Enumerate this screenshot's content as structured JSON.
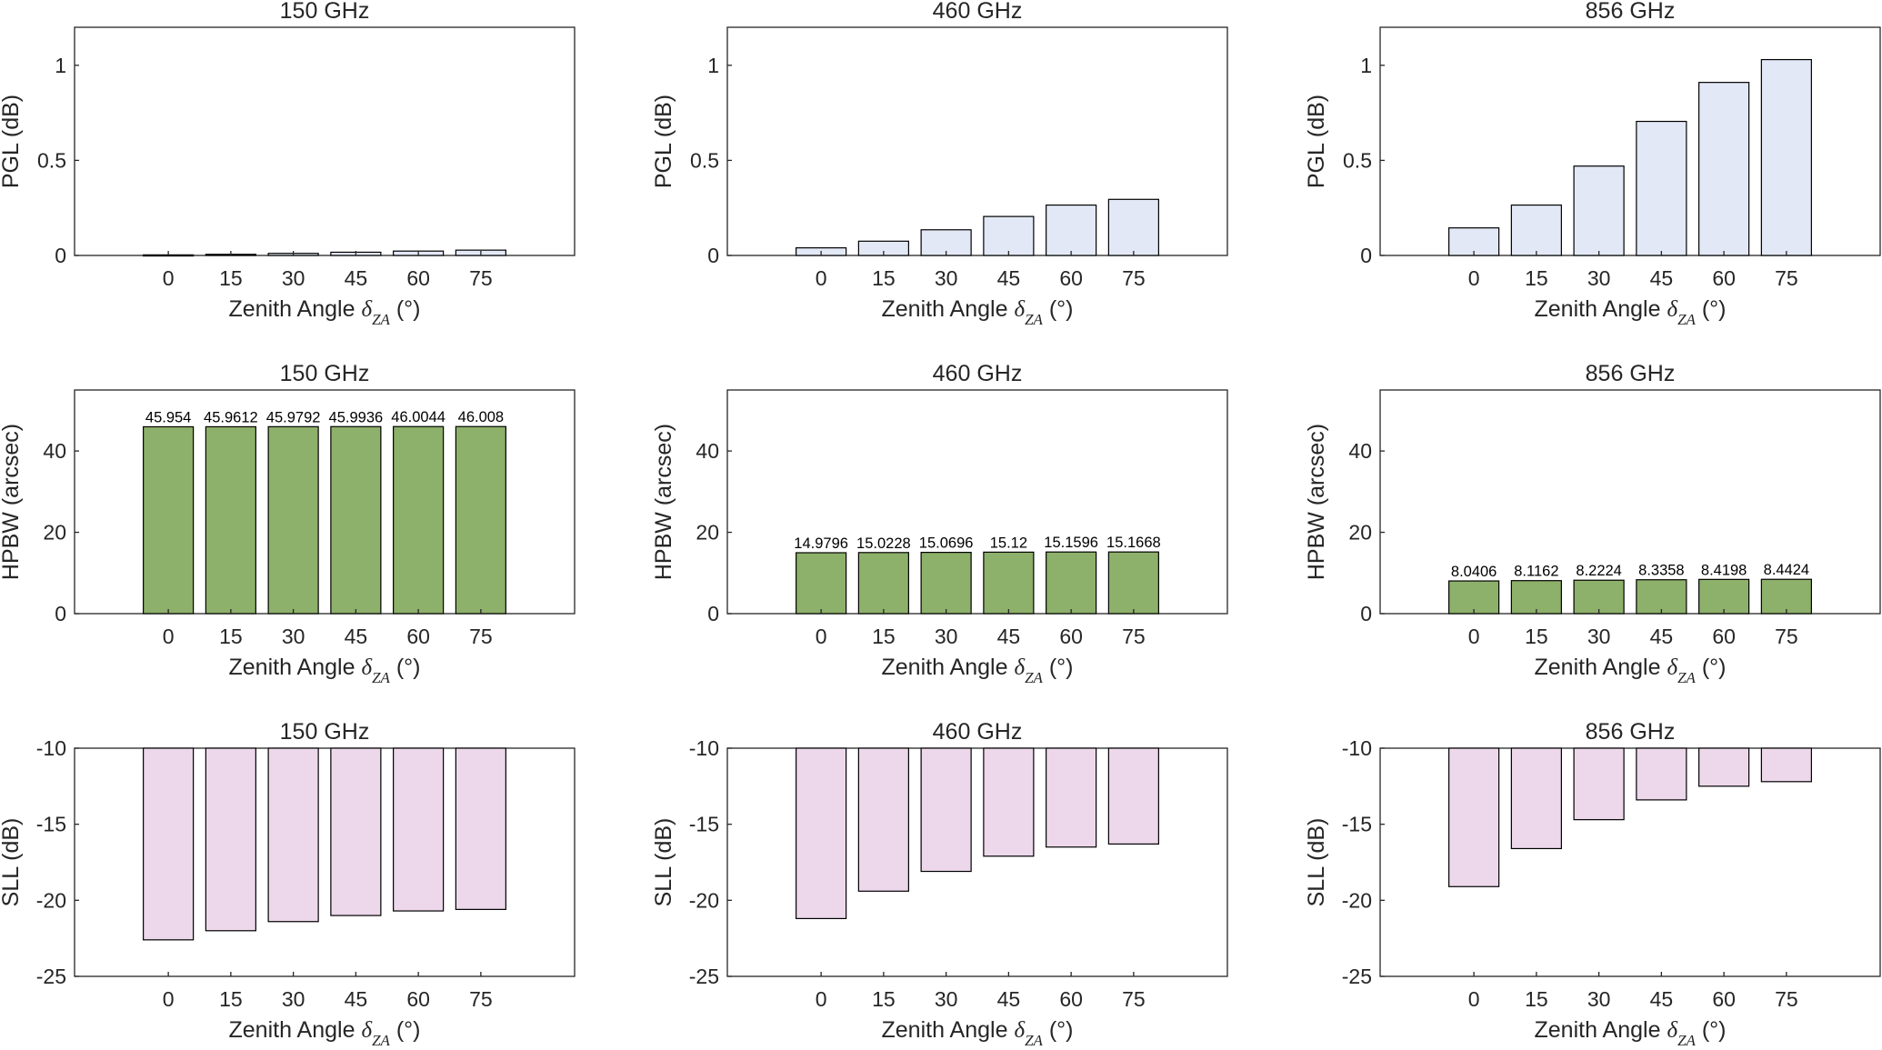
{
  "chart_data": [
    {
      "id": "pgl-150",
      "type": "bar",
      "title": "150 GHz",
      "xlabel": "Zenith Angle",
      "xlabel_symbol": "δ",
      "xlabel_sub": "ZA",
      "xlabel_unit": "(°)",
      "ylabel": "PGL (dB)",
      "categories": [
        "0",
        "15",
        "30",
        "45",
        "60",
        "75"
      ],
      "values": [
        0.003,
        0.006,
        0.011,
        0.017,
        0.023,
        0.028
      ],
      "ylim": [
        0,
        1.2
      ],
      "yticks": [
        0,
        0.5,
        1
      ],
      "ytick_labels": [
        "0",
        "0.5",
        "1"
      ],
      "color": "#e3e8f6",
      "show_labels": false
    },
    {
      "id": "pgl-460",
      "type": "bar",
      "title": "460 GHz",
      "xlabel": "Zenith Angle",
      "xlabel_symbol": "δ",
      "xlabel_sub": "ZA",
      "xlabel_unit": "(°)",
      "ylabel": "PGL (dB)",
      "categories": [
        "0",
        "15",
        "30",
        "45",
        "60",
        "75"
      ],
      "values": [
        0.04,
        0.075,
        0.135,
        0.205,
        0.265,
        0.295
      ],
      "ylim": [
        0,
        1.2
      ],
      "yticks": [
        0,
        0.5,
        1
      ],
      "ytick_labels": [
        "0",
        "0.5",
        "1"
      ],
      "color": "#e3e8f6",
      "show_labels": false
    },
    {
      "id": "pgl-856",
      "type": "bar",
      "title": "856 GHz",
      "xlabel": "Zenith Angle",
      "xlabel_symbol": "δ",
      "xlabel_sub": "ZA",
      "xlabel_unit": "(°)",
      "ylabel": "PGL (dB)",
      "categories": [
        "0",
        "15",
        "30",
        "45",
        "60",
        "75"
      ],
      "values": [
        0.145,
        0.265,
        0.47,
        0.705,
        0.91,
        1.03
      ],
      "ylim": [
        0,
        1.2
      ],
      "yticks": [
        0,
        0.5,
        1
      ],
      "ytick_labels": [
        "0",
        "0.5",
        "1"
      ],
      "color": "#e3e8f6",
      "show_labels": false
    },
    {
      "id": "hpbw-150",
      "type": "bar",
      "title": "150 GHz",
      "xlabel": "Zenith Angle",
      "xlabel_symbol": "δ",
      "xlabel_sub": "ZA",
      "xlabel_unit": "(°)",
      "ylabel": "HPBW (arcsec)",
      "categories": [
        "0",
        "15",
        "30",
        "45",
        "60",
        "75"
      ],
      "values": [
        45.954,
        45.9612,
        45.9792,
        45.9936,
        46.0044,
        46.008
      ],
      "data_labels": [
        "45.954",
        "45.9612",
        "45.9792",
        "45.9936",
        "46.0044",
        "46.008"
      ],
      "ylim": [
        0,
        55
      ],
      "yticks": [
        0,
        20,
        40
      ],
      "ytick_labels": [
        "0",
        "20",
        "40"
      ],
      "color": "#8db06a",
      "show_labels": true
    },
    {
      "id": "hpbw-460",
      "type": "bar",
      "title": "460 GHz",
      "xlabel": "Zenith Angle",
      "xlabel_symbol": "δ",
      "xlabel_sub": "ZA",
      "xlabel_unit": "(°)",
      "ylabel": "HPBW (arcsec)",
      "categories": [
        "0",
        "15",
        "30",
        "45",
        "60",
        "75"
      ],
      "values": [
        14.9796,
        15.0228,
        15.0696,
        15.12,
        15.1596,
        15.1668
      ],
      "data_labels": [
        "14.9796",
        "15.0228",
        "15.0696",
        "15.12",
        "15.1596",
        "15.1668"
      ],
      "ylim": [
        0,
        55
      ],
      "yticks": [
        0,
        20,
        40
      ],
      "ytick_labels": [
        "0",
        "20",
        "40"
      ],
      "color": "#8db06a",
      "show_labels": true
    },
    {
      "id": "hpbw-856",
      "type": "bar",
      "title": "856 GHz",
      "xlabel": "Zenith Angle",
      "xlabel_symbol": "δ",
      "xlabel_sub": "ZA",
      "xlabel_unit": "(°)",
      "ylabel": "HPBW (arcsec)",
      "categories": [
        "0",
        "15",
        "30",
        "45",
        "60",
        "75"
      ],
      "values": [
        8.0406,
        8.1162,
        8.2224,
        8.3358,
        8.4198,
        8.4424
      ],
      "data_labels": [
        "8.0406",
        "8.1162",
        "8.2224",
        "8.3358",
        "8.4198",
        "8.4424"
      ],
      "ylim": [
        0,
        55
      ],
      "yticks": [
        0,
        20,
        40
      ],
      "ytick_labels": [
        "0",
        "20",
        "40"
      ],
      "color": "#8db06a",
      "show_labels": true
    },
    {
      "id": "sll-150",
      "type": "bar",
      "title": "150 GHz",
      "xlabel": "Zenith Angle",
      "xlabel_symbol": "δ",
      "xlabel_sub": "ZA",
      "xlabel_unit": "(°)",
      "ylabel": "SLL (dB)",
      "categories": [
        "0",
        "15",
        "30",
        "45",
        "60",
        "75"
      ],
      "values": [
        -22.6,
        -22.0,
        -21.4,
        -21.0,
        -20.7,
        -20.6
      ],
      "ylim": [
        -25,
        -10
      ],
      "baseline": -10,
      "yticks": [
        -25,
        -20,
        -15,
        -10
      ],
      "ytick_labels": [
        "-25",
        "-20",
        "-15",
        "-10"
      ],
      "color": "#ecd8ea",
      "show_labels": false
    },
    {
      "id": "sll-460",
      "type": "bar",
      "title": "460 GHz",
      "xlabel": "Zenith Angle",
      "xlabel_symbol": "δ",
      "xlabel_sub": "ZA",
      "xlabel_unit": "(°)",
      "ylabel": "SLL (dB)",
      "categories": [
        "0",
        "15",
        "30",
        "45",
        "60",
        "75"
      ],
      "values": [
        -21.2,
        -19.4,
        -18.1,
        -17.1,
        -16.5,
        -16.3
      ],
      "ylim": [
        -25,
        -10
      ],
      "baseline": -10,
      "yticks": [
        -25,
        -20,
        -15,
        -10
      ],
      "ytick_labels": [
        "-25",
        "-20",
        "-15",
        "-10"
      ],
      "color": "#ecd8ea",
      "show_labels": false
    },
    {
      "id": "sll-856",
      "type": "bar",
      "title": "856 GHz",
      "xlabel": "Zenith Angle",
      "xlabel_symbol": "δ",
      "xlabel_sub": "ZA",
      "xlabel_unit": "(°)",
      "ylabel": "SLL (dB)",
      "categories": [
        "0",
        "15",
        "30",
        "45",
        "60",
        "75"
      ],
      "values": [
        -19.1,
        -16.6,
        -14.7,
        -13.4,
        -12.5,
        -12.2
      ],
      "ylim": [
        -25,
        -10
      ],
      "baseline": -10,
      "yticks": [
        -25,
        -20,
        -15,
        -10
      ],
      "ytick_labels": [
        "-25",
        "-20",
        "-15",
        "-10"
      ],
      "color": "#ecd8ea",
      "show_labels": false
    }
  ]
}
